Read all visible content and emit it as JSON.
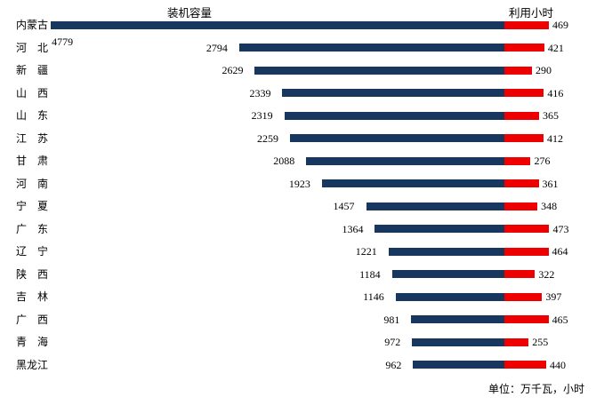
{
  "chart_data": {
    "type": "bar",
    "orientation": "horizontal-diverging",
    "title_left": "装机容量",
    "title_right": "利用小时",
    "unit_note": "单位：万千瓦，小时",
    "grid": false,
    "axes_visible": false,
    "value_labels": "outside-end",
    "categories": [
      "内蒙古",
      "河　北",
      "新　疆",
      "山　西",
      "山　东",
      "江　苏",
      "甘　肃",
      "河　南",
      "宁　夏",
      "广　东",
      "辽　宁",
      "陕　西",
      "吉　林",
      "广　西",
      "青　海",
      "黑龙江"
    ],
    "series": [
      {
        "name": "装机容量",
        "direction": "left",
        "color": "#17375E",
        "values": [
          4779,
          2794,
          2629,
          2339,
          2319,
          2259,
          2088,
          1923,
          1457,
          1364,
          1221,
          1184,
          1146,
          981,
          972,
          962
        ]
      },
      {
        "name": "利用小时",
        "direction": "right",
        "color": "#EE0000",
        "values": [
          469,
          421,
          290,
          416,
          365,
          412,
          276,
          361,
          348,
          473,
          464,
          322,
          397,
          465,
          255,
          440
        ]
      }
    ],
    "colors": {
      "capacity": "#17375E",
      "hours": "#EE0000",
      "text": "#000000",
      "background": "#FFFFFF"
    }
  }
}
